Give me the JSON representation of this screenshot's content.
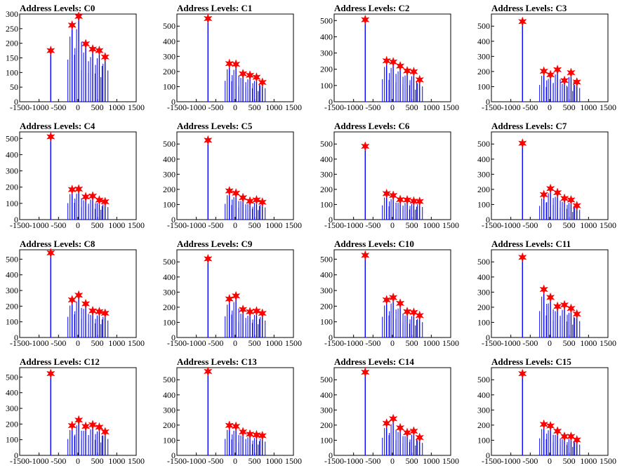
{
  "chart_data": [
    {
      "title": "Address Levels: C0",
      "type": "bar",
      "xlim": [
        -1500,
        1500
      ],
      "ylim": [
        0,
        300
      ],
      "yticks": [
        0,
        50,
        100,
        150,
        200,
        250,
        300
      ],
      "xticks": [
        -1500,
        -1000,
        -500,
        0,
        500,
        1000,
        1500
      ],
      "peaks": [
        {
          "x": -700,
          "y": 175
        },
        {
          "x": -150,
          "y": 262
        },
        {
          "x": 20,
          "y": 292
        },
        {
          "x": 200,
          "y": 198
        },
        {
          "x": 380,
          "y": 180
        },
        {
          "x": 550,
          "y": 175
        },
        {
          "x": 700,
          "y": 153
        }
      ]
    },
    {
      "title": "Address Levels: C1",
      "type": "bar",
      "xlim": [
        -1500,
        1500
      ],
      "ylim": [
        0,
        580
      ],
      "yticks": [
        0,
        100,
        200,
        300,
        400,
        500
      ],
      "xticks": [
        -1500,
        -1000,
        -500,
        0,
        500,
        1000,
        1500
      ],
      "peaks": [
        {
          "x": -700,
          "y": 550
        },
        {
          "x": -150,
          "y": 252
        },
        {
          "x": 20,
          "y": 248
        },
        {
          "x": 200,
          "y": 185
        },
        {
          "x": 380,
          "y": 175
        },
        {
          "x": 550,
          "y": 162
        },
        {
          "x": 700,
          "y": 128
        }
      ]
    },
    {
      "title": "Address Levels: C2",
      "type": "bar",
      "xlim": [
        -1500,
        1500
      ],
      "ylim": [
        0,
        540
      ],
      "yticks": [
        0,
        100,
        200,
        300,
        400,
        500
      ],
      "xticks": [
        -1500,
        -1000,
        -500,
        0,
        500,
        1000,
        1500
      ],
      "peaks": [
        {
          "x": -700,
          "y": 505
        },
        {
          "x": -150,
          "y": 252
        },
        {
          "x": 20,
          "y": 245
        },
        {
          "x": 200,
          "y": 220
        },
        {
          "x": 380,
          "y": 190
        },
        {
          "x": 550,
          "y": 185
        },
        {
          "x": 700,
          "y": 135
        }
      ]
    },
    {
      "title": "Address Levels: C3",
      "type": "bar",
      "xlim": [
        -1500,
        1500
      ],
      "ylim": [
        0,
        580
      ],
      "yticks": [
        0,
        100,
        200,
        300,
        400,
        500
      ],
      "xticks": [
        -1500,
        -1000,
        -500,
        0,
        500,
        1000,
        1500
      ],
      "peaks": [
        {
          "x": -700,
          "y": 530
        },
        {
          "x": -150,
          "y": 202
        },
        {
          "x": 20,
          "y": 178
        },
        {
          "x": 200,
          "y": 212
        },
        {
          "x": 380,
          "y": 140
        },
        {
          "x": 550,
          "y": 192
        },
        {
          "x": 700,
          "y": 130
        }
      ]
    },
    {
      "title": "Address Levels: C4",
      "type": "bar",
      "xlim": [
        -1500,
        1500
      ],
      "ylim": [
        0,
        540
      ],
      "yticks": [
        0,
        100,
        200,
        300,
        400,
        500
      ],
      "xticks": [
        -1500,
        -1000,
        -500,
        0,
        500,
        1000,
        1500
      ],
      "peaks": [
        {
          "x": -700,
          "y": 510
        },
        {
          "x": -150,
          "y": 185
        },
        {
          "x": 20,
          "y": 188
        },
        {
          "x": 200,
          "y": 140
        },
        {
          "x": 380,
          "y": 145
        },
        {
          "x": 550,
          "y": 120
        },
        {
          "x": 700,
          "y": 110
        }
      ]
    },
    {
      "title": "Address Levels: C5",
      "type": "bar",
      "xlim": [
        -1500,
        1500
      ],
      "ylim": [
        0,
        580
      ],
      "yticks": [
        0,
        100,
        200,
        300,
        400,
        500
      ],
      "xticks": [
        -1500,
        -1000,
        -500,
        0,
        500,
        1000,
        1500
      ],
      "peaks": [
        {
          "x": -700,
          "y": 525
        },
        {
          "x": -150,
          "y": 190
        },
        {
          "x": 20,
          "y": 175
        },
        {
          "x": 200,
          "y": 145
        },
        {
          "x": 380,
          "y": 122
        },
        {
          "x": 550,
          "y": 130
        },
        {
          "x": 700,
          "y": 115
        }
      ]
    },
    {
      "title": "Address Levels: C6",
      "type": "bar",
      "xlim": [
        -1500,
        1500
      ],
      "ylim": [
        0,
        580
      ],
      "yticks": [
        0,
        100,
        200,
        300,
        400,
        500
      ],
      "xticks": [
        -1500,
        -1000,
        -500,
        0,
        500,
        1000,
        1500
      ],
      "peaks": [
        {
          "x": -700,
          "y": 485
        },
        {
          "x": -150,
          "y": 172
        },
        {
          "x": 20,
          "y": 160
        },
        {
          "x": 200,
          "y": 132
        },
        {
          "x": 380,
          "y": 130
        },
        {
          "x": 550,
          "y": 122
        },
        {
          "x": 700,
          "y": 120
        }
      ]
    },
    {
      "title": "Address Levels: C7",
      "type": "bar",
      "xlim": [
        -1500,
        1500
      ],
      "ylim": [
        0,
        580
      ],
      "yticks": [
        0,
        100,
        200,
        300,
        400,
        500
      ],
      "xticks": [
        -1500,
        -1000,
        -500,
        0,
        500,
        1000,
        1500
      ],
      "peaks": [
        {
          "x": -700,
          "y": 505
        },
        {
          "x": -150,
          "y": 165
        },
        {
          "x": 20,
          "y": 205
        },
        {
          "x": 200,
          "y": 178
        },
        {
          "x": 380,
          "y": 140
        },
        {
          "x": 550,
          "y": 130
        },
        {
          "x": 700,
          "y": 92
        }
      ]
    },
    {
      "title": "Address Levels: C8",
      "type": "bar",
      "xlim": [
        -1500,
        1500
      ],
      "ylim": [
        0,
        560
      ],
      "yticks": [
        0,
        100,
        200,
        300,
        400,
        500
      ],
      "xticks": [
        -1500,
        -1000,
        -500,
        0,
        500,
        1000,
        1500
      ],
      "peaks": [
        {
          "x": -700,
          "y": 540
        },
        {
          "x": -150,
          "y": 240
        },
        {
          "x": 20,
          "y": 270
        },
        {
          "x": 200,
          "y": 215
        },
        {
          "x": 380,
          "y": 170
        },
        {
          "x": 550,
          "y": 165
        },
        {
          "x": 700,
          "y": 155
        }
      ]
    },
    {
      "title": "Address Levels: C9",
      "type": "bar",
      "xlim": [
        -1500,
        1500
      ],
      "ylim": [
        0,
        580
      ],
      "yticks": [
        0,
        100,
        200,
        300,
        400,
        500
      ],
      "xticks": [
        -1500,
        -1000,
        -500,
        0,
        500,
        1000,
        1500
      ],
      "peaks": [
        {
          "x": -700,
          "y": 520
        },
        {
          "x": -150,
          "y": 255
        },
        {
          "x": 20,
          "y": 275
        },
        {
          "x": 200,
          "y": 185
        },
        {
          "x": 380,
          "y": 170
        },
        {
          "x": 550,
          "y": 175
        },
        {
          "x": 700,
          "y": 160
        }
      ]
    },
    {
      "title": "Address Levels: C10",
      "type": "bar",
      "xlim": [
        -1500,
        1500
      ],
      "ylim": [
        0,
        560
      ],
      "yticks": [
        0,
        100,
        200,
        300,
        400,
        500
      ],
      "xticks": [
        -1500,
        -1000,
        -500,
        0,
        500,
        1000,
        1500
      ],
      "peaks": [
        {
          "x": -700,
          "y": 525
        },
        {
          "x": -150,
          "y": 240
        },
        {
          "x": 20,
          "y": 255
        },
        {
          "x": 200,
          "y": 218
        },
        {
          "x": 380,
          "y": 165
        },
        {
          "x": 550,
          "y": 160
        },
        {
          "x": 700,
          "y": 140
        }
      ]
    },
    {
      "title": "Address Levels: C11",
      "type": "bar",
      "xlim": [
        -1500,
        1500
      ],
      "ylim": [
        0,
        580
      ],
      "yticks": [
        0,
        100,
        200,
        300,
        400,
        500
      ],
      "xticks": [
        -1500,
        -1000,
        -500,
        0,
        500,
        1000,
        1500
      ],
      "peaks": [
        {
          "x": -700,
          "y": 530
        },
        {
          "x": -150,
          "y": 318
        },
        {
          "x": 20,
          "y": 265
        },
        {
          "x": 200,
          "y": 205
        },
        {
          "x": 380,
          "y": 215
        },
        {
          "x": 550,
          "y": 192
        },
        {
          "x": 700,
          "y": 155
        }
      ]
    },
    {
      "title": "Address Levels: C12",
      "type": "bar",
      "xlim": [
        -1500,
        1500
      ],
      "ylim": [
        0,
        560
      ],
      "yticks": [
        0,
        100,
        200,
        300,
        400,
        500
      ],
      "xticks": [
        -1500,
        -1000,
        -500,
        0,
        500,
        1000,
        1500
      ],
      "peaks": [
        {
          "x": -700,
          "y": 522
        },
        {
          "x": -150,
          "y": 190
        },
        {
          "x": 20,
          "y": 225
        },
        {
          "x": 200,
          "y": 185
        },
        {
          "x": 380,
          "y": 195
        },
        {
          "x": 550,
          "y": 180
        },
        {
          "x": 700,
          "y": 150
        }
      ]
    },
    {
      "title": "Address Levels: C13",
      "type": "bar",
      "xlim": [
        -1500,
        1500
      ],
      "ylim": [
        0,
        580
      ],
      "yticks": [
        0,
        100,
        200,
        300,
        400,
        500
      ],
      "xticks": [
        -1500,
        -1000,
        -500,
        0,
        500,
        1000,
        1500
      ],
      "peaks": [
        {
          "x": -700,
          "y": 555
        },
        {
          "x": -150,
          "y": 198
        },
        {
          "x": 20,
          "y": 192
        },
        {
          "x": 200,
          "y": 155
        },
        {
          "x": 380,
          "y": 140
        },
        {
          "x": 550,
          "y": 135
        },
        {
          "x": 700,
          "y": 130
        }
      ]
    },
    {
      "title": "Address Levels: C14",
      "type": "bar",
      "xlim": [
        -1500,
        1500
      ],
      "ylim": [
        0,
        580
      ],
      "yticks": [
        0,
        100,
        200,
        300,
        400,
        500
      ],
      "xticks": [
        -1500,
        -1000,
        -500,
        0,
        500,
        1000,
        1500
      ],
      "peaks": [
        {
          "x": -700,
          "y": 550
        },
        {
          "x": -150,
          "y": 212
        },
        {
          "x": 20,
          "y": 242
        },
        {
          "x": 200,
          "y": 182
        },
        {
          "x": 380,
          "y": 150
        },
        {
          "x": 550,
          "y": 160
        },
        {
          "x": 700,
          "y": 118
        }
      ]
    },
    {
      "title": "Address Levels: C15",
      "type": "bar",
      "xlim": [
        -1500,
        1500
      ],
      "ylim": [
        0,
        580
      ],
      "yticks": [
        0,
        100,
        200,
        300,
        400,
        500
      ],
      "xticks": [
        -1500,
        -1000,
        -500,
        0,
        500,
        1000,
        1500
      ],
      "peaks": [
        {
          "x": -700,
          "y": 540
        },
        {
          "x": -150,
          "y": 205
        },
        {
          "x": 20,
          "y": 195
        },
        {
          "x": 200,
          "y": 160
        },
        {
          "x": 380,
          "y": 125
        },
        {
          "x": 550,
          "y": 125
        },
        {
          "x": 700,
          "y": 102
        }
      ]
    }
  ],
  "colors": {
    "bar": "#0000ff",
    "marker": "#ff0000",
    "axis": "#000000"
  }
}
